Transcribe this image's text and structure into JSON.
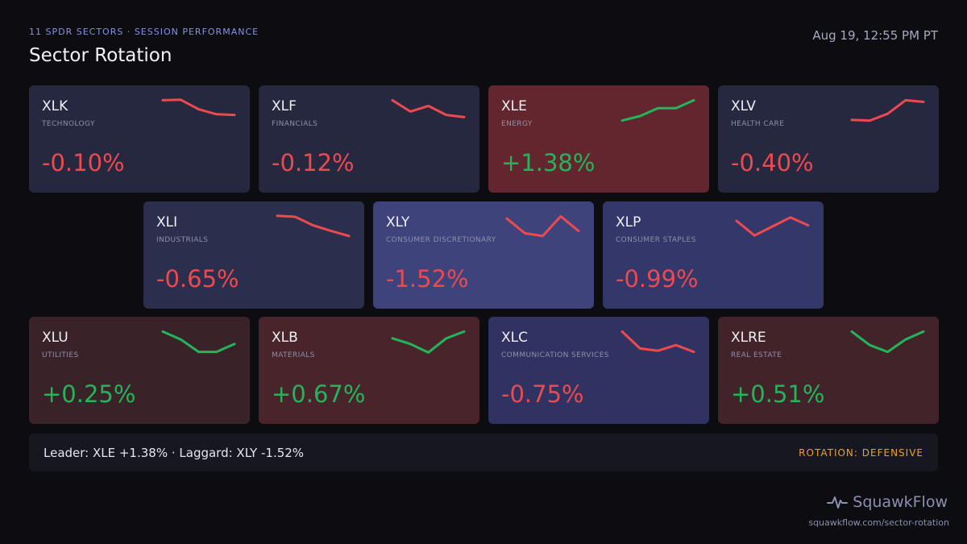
{
  "header": {
    "eyebrow": "11 SPDR SECTORS · SESSION PERFORMANCE",
    "title": "Sector Rotation",
    "timestamp": "Aug 19, 12:55 PM PT"
  },
  "colors": {
    "positive": "#22b55a",
    "negative": "#ec4a4f",
    "rotation_accent": "#f0a02a"
  },
  "sectors": [
    {
      "ticker": "XLK",
      "name": "TECHNOLOGY",
      "change": "-0.10%",
      "direction": "down",
      "spark": [
        0.95,
        0.97,
        0.55,
        0.33,
        0.3
      ]
    },
    {
      "ticker": "XLF",
      "name": "FINANCIALS",
      "change": "-0.12%",
      "direction": "down",
      "spark": [
        0.95,
        0.45,
        0.7,
        0.3,
        0.2
      ]
    },
    {
      "ticker": "XLE",
      "name": "ENERGY",
      "change": "+1.38%",
      "direction": "up",
      "spark": [
        0.05,
        0.25,
        0.6,
        0.6,
        0.95
      ]
    },
    {
      "ticker": "XLV",
      "name": "HEALTH CARE",
      "change": "-0.40%",
      "direction": "down",
      "spark": [
        0.08,
        0.05,
        0.35,
        0.95,
        0.88
      ]
    },
    {
      "ticker": "XLI",
      "name": "INDUSTRIALS",
      "change": "-0.65%",
      "direction": "down",
      "spark": [
        0.97,
        0.93,
        0.55,
        0.3,
        0.08
      ]
    },
    {
      "ticker": "XLY",
      "name": "CONSUMER DISCRETIONARY",
      "change": "-1.52%",
      "direction": "down",
      "spark": [
        0.85,
        0.2,
        0.08,
        0.95,
        0.3
      ]
    },
    {
      "ticker": "XLP",
      "name": "CONSUMER STAPLES",
      "change": "-0.99%",
      "direction": "down",
      "spark": [
        0.75,
        0.1,
        0.5,
        0.9,
        0.55
      ]
    },
    {
      "ticker": "XLU",
      "name": "UTILITIES",
      "change": "+0.25%",
      "direction": "up",
      "spark": [
        0.95,
        0.6,
        0.05,
        0.05,
        0.4
      ]
    },
    {
      "ticker": "XLB",
      "name": "MATERIALS",
      "change": "+0.67%",
      "direction": "up",
      "spark": [
        0.65,
        0.4,
        0.02,
        0.65,
        0.95
      ]
    },
    {
      "ticker": "XLC",
      "name": "COMMUNICATION SERVICES",
      "change": "-0.75%",
      "direction": "down",
      "spark": [
        0.95,
        0.2,
        0.1,
        0.35,
        0.05
      ]
    },
    {
      "ticker": "XLRE",
      "name": "REAL ESTATE",
      "change": "+0.51%",
      "direction": "up",
      "spark": [
        0.95,
        0.35,
        0.05,
        0.6,
        0.95
      ]
    }
  ],
  "footer": {
    "summary": "Leader: XLE +1.38% · Laggard: XLY -1.52%",
    "rotation": "ROTATION: DEFENSIVE"
  },
  "brand": {
    "name": "SquawkFlow",
    "icon": "pulse-icon",
    "url": "squawkflow.com/sector-rotation"
  }
}
